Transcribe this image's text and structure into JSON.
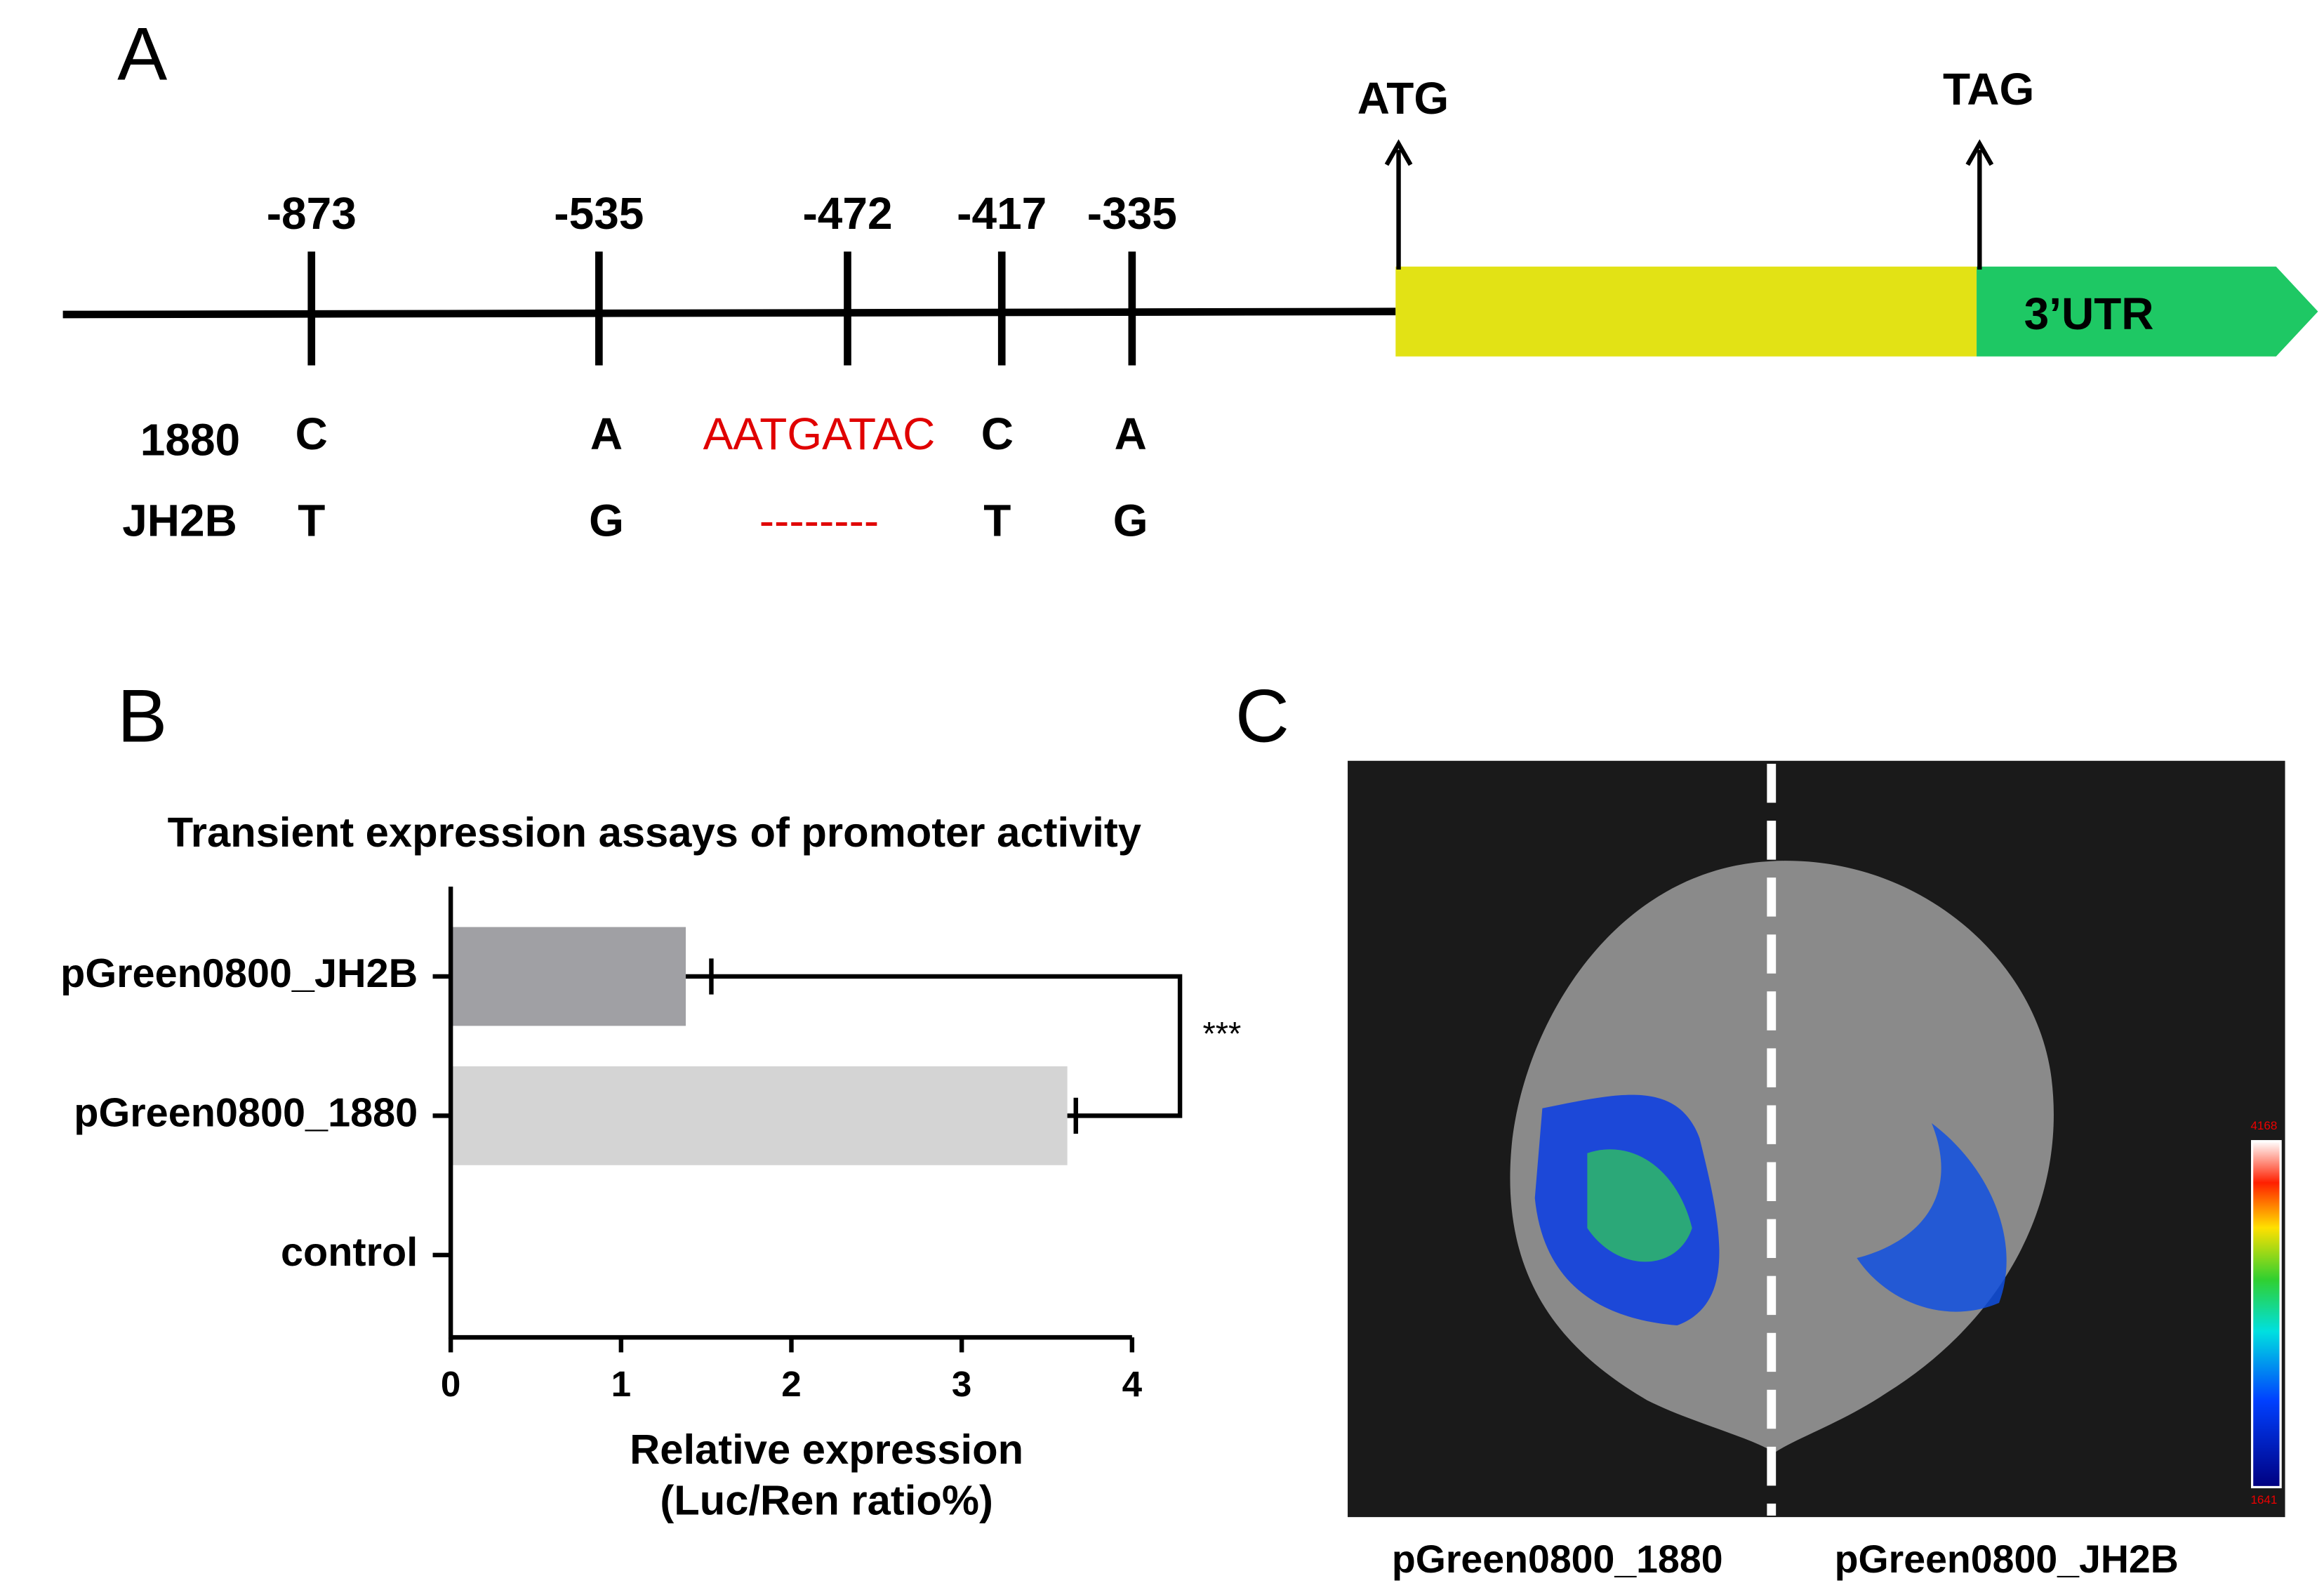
{
  "panel_a": {
    "label": "A",
    "positions": [
      "-873",
      "-535",
      "-472",
      "-417",
      "-335"
    ],
    "rows": [
      {
        "name": "1880",
        "alleles": [
          "C",
          "A",
          "AATGATAC",
          "C",
          "A"
        ]
      },
      {
        "name": "JH2B",
        "alleles": [
          "T",
          "G",
          "--------",
          "T",
          "G"
        ]
      }
    ],
    "start_codon": "ATG",
    "stop_codon": "TAG",
    "utr": "3’UTR"
  },
  "chart_data": {
    "type": "hbar",
    "label": "B",
    "title": "Transient expression assays of promoter activity",
    "categories": [
      "pGreen0800_JH2B",
      "pGreen0800_1880",
      "control"
    ],
    "values": [
      1.38,
      3.62,
      0
    ],
    "errors": [
      0.15,
      0.05,
      0
    ],
    "colors": [
      "#a0a0a4",
      "#d4d4d4",
      "#d4d4d4"
    ],
    "xlabel": [
      "Relative expression",
      "(Luc/Ren ratio%)"
    ],
    "xlim": [
      0,
      4
    ],
    "xticks": [
      0,
      1,
      2,
      3,
      4
    ],
    "significance": "***"
  },
  "panel_c": {
    "label": "C",
    "captions": [
      "pGreen0800_1880",
      "pGreen0800_JH2B"
    ],
    "scale_max": "4168",
    "scale_min": "1641"
  }
}
